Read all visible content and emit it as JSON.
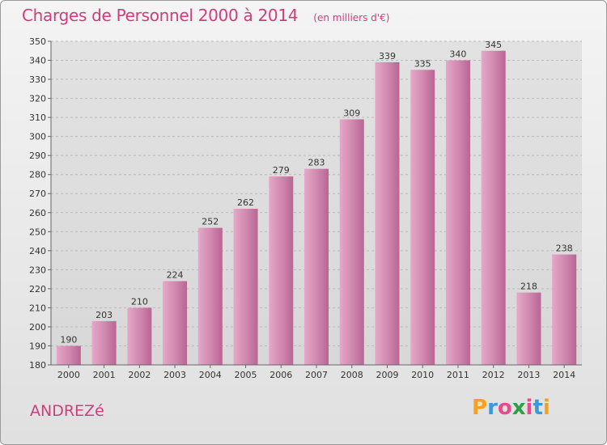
{
  "title": "Charges de Personnel 2000 à 2014",
  "subtitle": "(en milliers d'€)",
  "commune": "ANDREZé",
  "logo": {
    "letters": [
      "P",
      "r",
      "o",
      "x",
      "i",
      "t",
      "i"
    ],
    "colors": [
      "#f7a21b",
      "#3a9ad9",
      "#e64c8d",
      "#2ea043",
      "#e64c8d",
      "#3a9ad9",
      "#f7a21b"
    ]
  },
  "chart_data": {
    "type": "bar",
    "categories": [
      "2000",
      "2001",
      "2002",
      "2003",
      "2004",
      "2005",
      "2006",
      "2007",
      "2008",
      "2009",
      "2010",
      "2011",
      "2012",
      "2013",
      "2014"
    ],
    "values": [
      190,
      203,
      210,
      224,
      252,
      262,
      279,
      283,
      309,
      339,
      335,
      340,
      345,
      218,
      238
    ],
    "ylim": [
      180,
      350
    ],
    "yticks": [
      180,
      190,
      200,
      210,
      220,
      230,
      240,
      250,
      260,
      270,
      280,
      290,
      300,
      310,
      320,
      330,
      340,
      350
    ],
    "grid": true,
    "bar_color": "#c8739e"
  }
}
